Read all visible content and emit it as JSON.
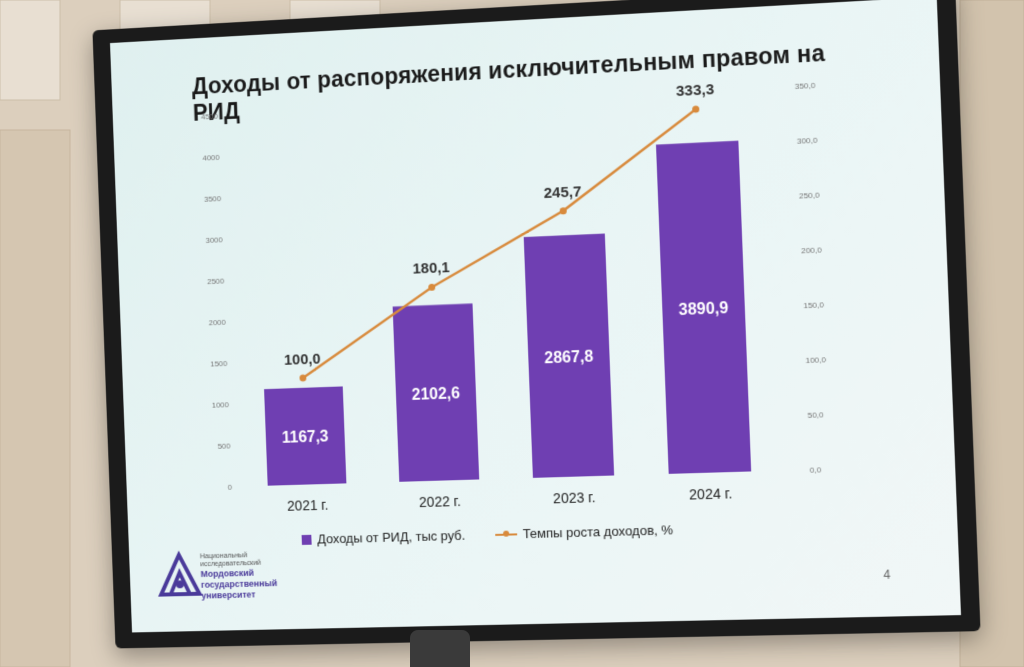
{
  "slide": {
    "title": "Доходы от распоряжения исключительным правом на РИД",
    "page_number": "4",
    "logo": {
      "line1": "Национальный",
      "line2": "исследовательский",
      "line3": "Мордовский",
      "line4": "государственный",
      "line5": "университет"
    }
  },
  "chart_data": {
    "type": "bar",
    "categories": [
      "2021 г.",
      "2022 г.",
      "2023 г.",
      "2024 г."
    ],
    "series": [
      {
        "name": "Доходы от  РИД, тыс руб.",
        "type": "bar",
        "axis": "left",
        "values": [
          1167.3,
          2102.6,
          2867.8,
          3890.9
        ],
        "labels": [
          "1167,3",
          "2102,6",
          "2867,8",
          "3890,9"
        ]
      },
      {
        "name": "Темпы роста доходов,  %",
        "type": "line",
        "axis": "right",
        "values": [
          100.0,
          180.1,
          245.7,
          333.3
        ],
        "labels": [
          "100,0",
          "180,1",
          "245,7",
          "333,3"
        ]
      }
    ],
    "left_axis": {
      "ylim": [
        0,
        4500
      ],
      "ticks": [
        "0",
        "500",
        "1000",
        "1500",
        "2000",
        "2500",
        "3000",
        "3500",
        "4000",
        "4500"
      ]
    },
    "right_axis": {
      "ylim": [
        0,
        350
      ],
      "ticks": [
        "0,0",
        "50,0",
        "100,0",
        "150,0",
        "200,0",
        "250,0",
        "300,0",
        "350,0"
      ]
    },
    "legend_position": "bottom",
    "colors": {
      "bar": "#6f3fb2",
      "line": "#d88a3c"
    }
  }
}
